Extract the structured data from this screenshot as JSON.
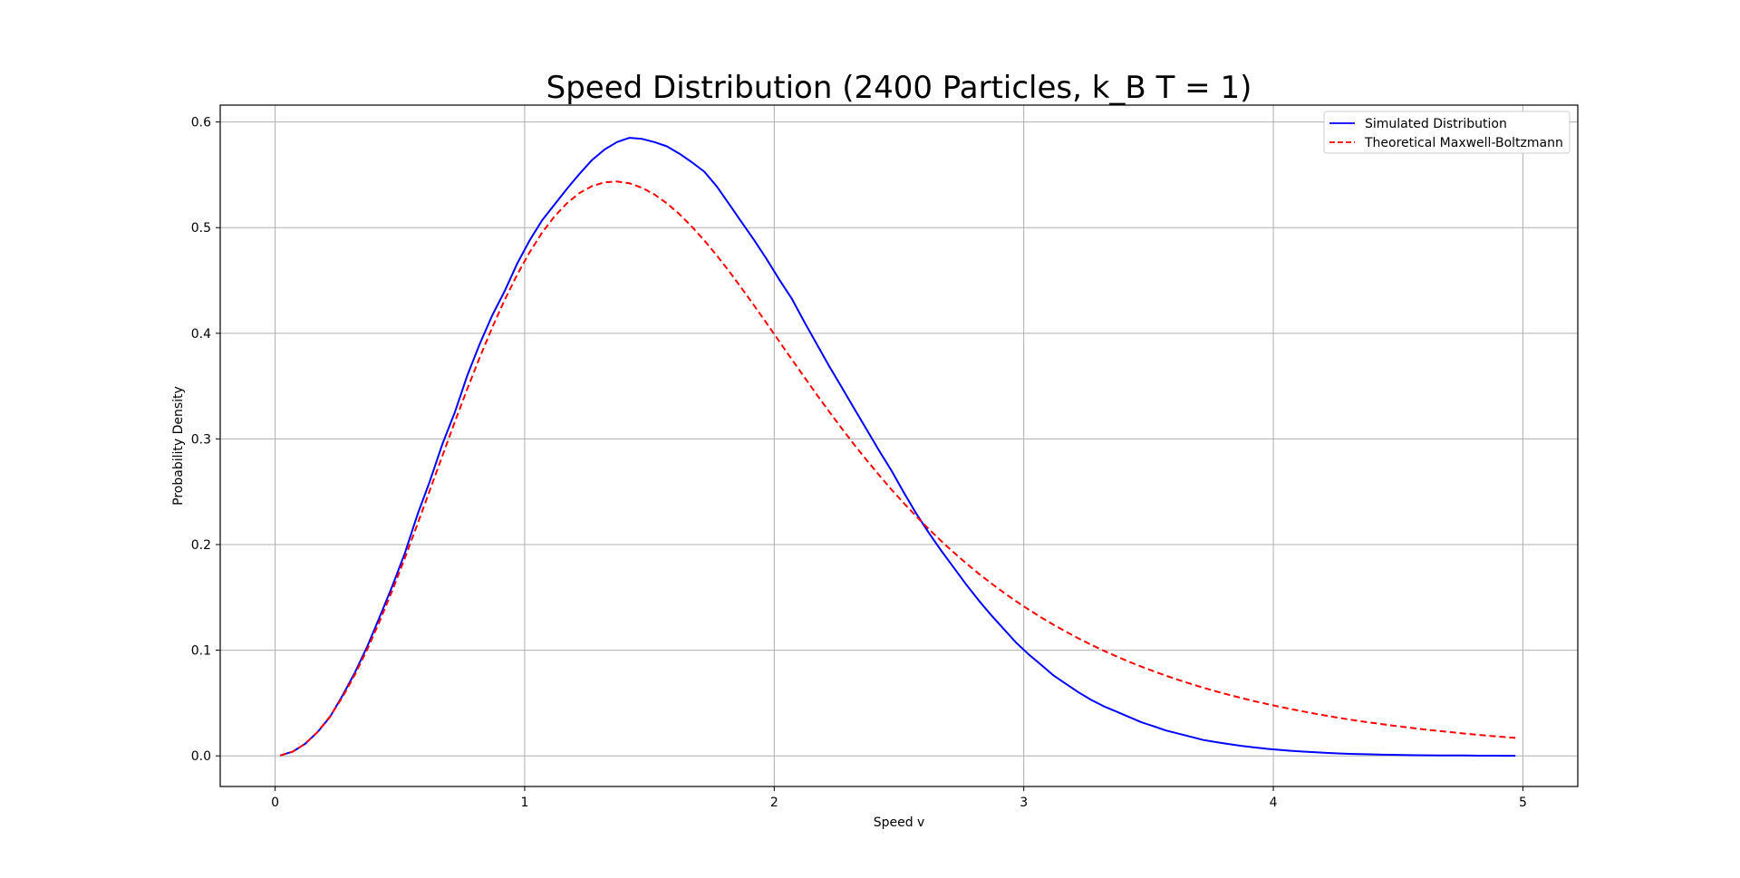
{
  "chart_data": {
    "type": "line",
    "title": "Speed Distribution (2400 Particles, k_B T = 1)",
    "xlabel": "Speed v",
    "ylabel": "Probability Density",
    "xlim": [
      -0.22,
      5.22
    ],
    "ylim": [
      -0.029,
      0.616
    ],
    "xticks": [
      0,
      1,
      2,
      3,
      4,
      5
    ],
    "yticks": [
      0.0,
      0.1,
      0.2,
      0.3,
      0.4,
      0.5,
      0.6
    ],
    "xtick_labels": [
      "0",
      "1",
      "2",
      "3",
      "4",
      "5"
    ],
    "ytick_labels": [
      "0.0",
      "0.1",
      "0.2",
      "0.3",
      "0.4",
      "0.5",
      "0.6"
    ],
    "grid": true,
    "legend_position": "top-right",
    "series": [
      {
        "name": "Simulated Distribution",
        "color": "#0000ff",
        "style": "solid",
        "x": [
          0.02,
          0.07,
          0.12,
          0.17,
          0.22,
          0.27,
          0.32,
          0.37,
          0.42,
          0.47,
          0.52,
          0.57,
          0.62,
          0.67,
          0.72,
          0.77,
          0.82,
          0.87,
          0.92,
          0.97,
          1.02,
          1.07,
          1.12,
          1.17,
          1.22,
          1.27,
          1.32,
          1.37,
          1.42,
          1.47,
          1.52,
          1.57,
          1.62,
          1.67,
          1.72,
          1.77,
          1.82,
          1.87,
          1.92,
          1.97,
          2.02,
          2.07,
          2.12,
          2.17,
          2.22,
          2.27,
          2.32,
          2.37,
          2.42,
          2.47,
          2.52,
          2.57,
          2.62,
          2.67,
          2.72,
          2.77,
          2.82,
          2.87,
          2.92,
          2.97,
          3.02,
          3.07,
          3.12,
          3.17,
          3.22,
          3.27,
          3.32,
          3.37,
          3.42,
          3.47,
          3.52,
          3.57,
          3.62,
          3.67,
          3.72,
          3.77,
          3.82,
          3.87,
          3.92,
          3.97,
          4.02,
          4.07,
          4.12,
          4.17,
          4.22,
          4.27,
          4.32,
          4.37,
          4.42,
          4.47,
          4.52,
          4.57,
          4.62,
          4.67,
          4.72,
          4.77,
          4.82,
          4.87,
          4.92,
          4.97
        ],
        "y": [
          0.0003,
          0.0039,
          0.0113,
          0.0225,
          0.037,
          0.057,
          0.079,
          0.104,
          0.132,
          0.161,
          0.192,
          0.228,
          0.26,
          0.295,
          0.325,
          0.36,
          0.39,
          0.417,
          0.44,
          0.466,
          0.488,
          0.507,
          0.522,
          0.537,
          0.551,
          0.564,
          0.574,
          0.581,
          0.585,
          0.584,
          0.581,
          0.577,
          0.57,
          0.562,
          0.553,
          0.539,
          0.522,
          0.505,
          0.488,
          0.47,
          0.451,
          0.433,
          0.411,
          0.39,
          0.369,
          0.349,
          0.329,
          0.309,
          0.289,
          0.27,
          0.249,
          0.229,
          0.211,
          0.194,
          0.178,
          0.162,
          0.147,
          0.133,
          0.12,
          0.107,
          0.096,
          0.086,
          0.076,
          0.068,
          0.06,
          0.053,
          0.047,
          0.042,
          0.037,
          0.032,
          0.028,
          0.024,
          0.021,
          0.018,
          0.015,
          0.013,
          0.0112,
          0.0095,
          0.0081,
          0.0068,
          0.0057,
          0.0048,
          0.004,
          0.0033,
          0.0027,
          0.0022,
          0.0018,
          0.0015,
          0.0012,
          0.001,
          0.0008,
          0.0006,
          0.0005,
          0.0004,
          0.0003,
          0.0003,
          0.0002,
          0.0002,
          0.0001,
          0.0001
        ]
      },
      {
        "name": "Theoretical Maxwell-Boltzmann",
        "color": "#ff0000",
        "style": "dashed",
        "x": [
          0.02,
          0.07,
          0.12,
          0.17,
          0.22,
          0.27,
          0.32,
          0.37,
          0.42,
          0.47,
          0.52,
          0.57,
          0.62,
          0.67,
          0.72,
          0.77,
          0.82,
          0.87,
          0.92,
          0.97,
          1.02,
          1.07,
          1.12,
          1.17,
          1.22,
          1.27,
          1.32,
          1.37,
          1.42,
          1.47,
          1.52,
          1.57,
          1.62,
          1.67,
          1.72,
          1.77,
          1.82,
          1.87,
          1.92,
          1.97,
          2.02,
          2.07,
          2.12,
          2.17,
          2.22,
          2.27,
          2.32,
          2.37,
          2.42,
          2.47,
          2.52,
          2.57,
          2.62,
          2.67,
          2.72,
          2.77,
          2.82,
          2.87,
          2.92,
          2.97,
          3.02,
          3.07,
          3.12,
          3.17,
          3.22,
          3.27,
          3.32,
          3.37,
          3.42,
          3.47,
          3.52,
          3.57,
          3.62,
          3.67,
          3.72,
          3.77,
          3.82,
          3.87,
          3.92,
          3.97,
          4.02,
          4.07,
          4.12,
          4.17,
          4.22,
          4.27,
          4.32,
          4.37,
          4.42,
          4.47,
          4.52,
          4.57,
          4.62,
          4.67,
          4.72,
          4.77,
          4.82,
          4.87,
          4.92,
          4.97
        ],
        "y": [
          0.0003,
          0.0039,
          0.0114,
          0.0226,
          0.0374,
          0.0556,
          0.077,
          0.1013,
          0.128,
          0.1568,
          0.1873,
          0.219,
          0.2514,
          0.2839,
          0.316,
          0.3473,
          0.3772,
          0.4055,
          0.4317,
          0.4555,
          0.4768,
          0.4953,
          0.5108,
          0.5233,
          0.5328,
          0.5393,
          0.5429,
          0.5437,
          0.542,
          0.5378,
          0.5314,
          0.523,
          0.5128,
          0.501,
          0.4879,
          0.4736,
          0.4584,
          0.4425,
          0.4261,
          0.4093,
          0.3924,
          0.3755,
          0.3587,
          0.3421,
          0.3259,
          0.3101,
          0.2948,
          0.28,
          0.2658,
          0.2521,
          0.239,
          0.2265,
          0.2146,
          0.2032,
          0.1924,
          0.1822,
          0.1724,
          0.1632,
          0.1545,
          0.1462,
          0.1384,
          0.131,
          0.124,
          0.1174,
          0.1111,
          0.1052,
          0.0996,
          0.0943,
          0.0893,
          0.0846,
          0.0801,
          0.0759,
          0.0719,
          0.0681,
          0.0645,
          0.0611,
          0.0579,
          0.0549,
          0.052,
          0.0493,
          0.0467,
          0.0443,
          0.042,
          0.0398,
          0.0377,
          0.0357,
          0.0339,
          0.0321,
          0.0305,
          0.0289,
          0.0274,
          0.026,
          0.0246,
          0.0234,
          0.0222,
          0.021,
          0.0199,
          0.0189,
          0.0179,
          0.017
        ]
      }
    ]
  }
}
